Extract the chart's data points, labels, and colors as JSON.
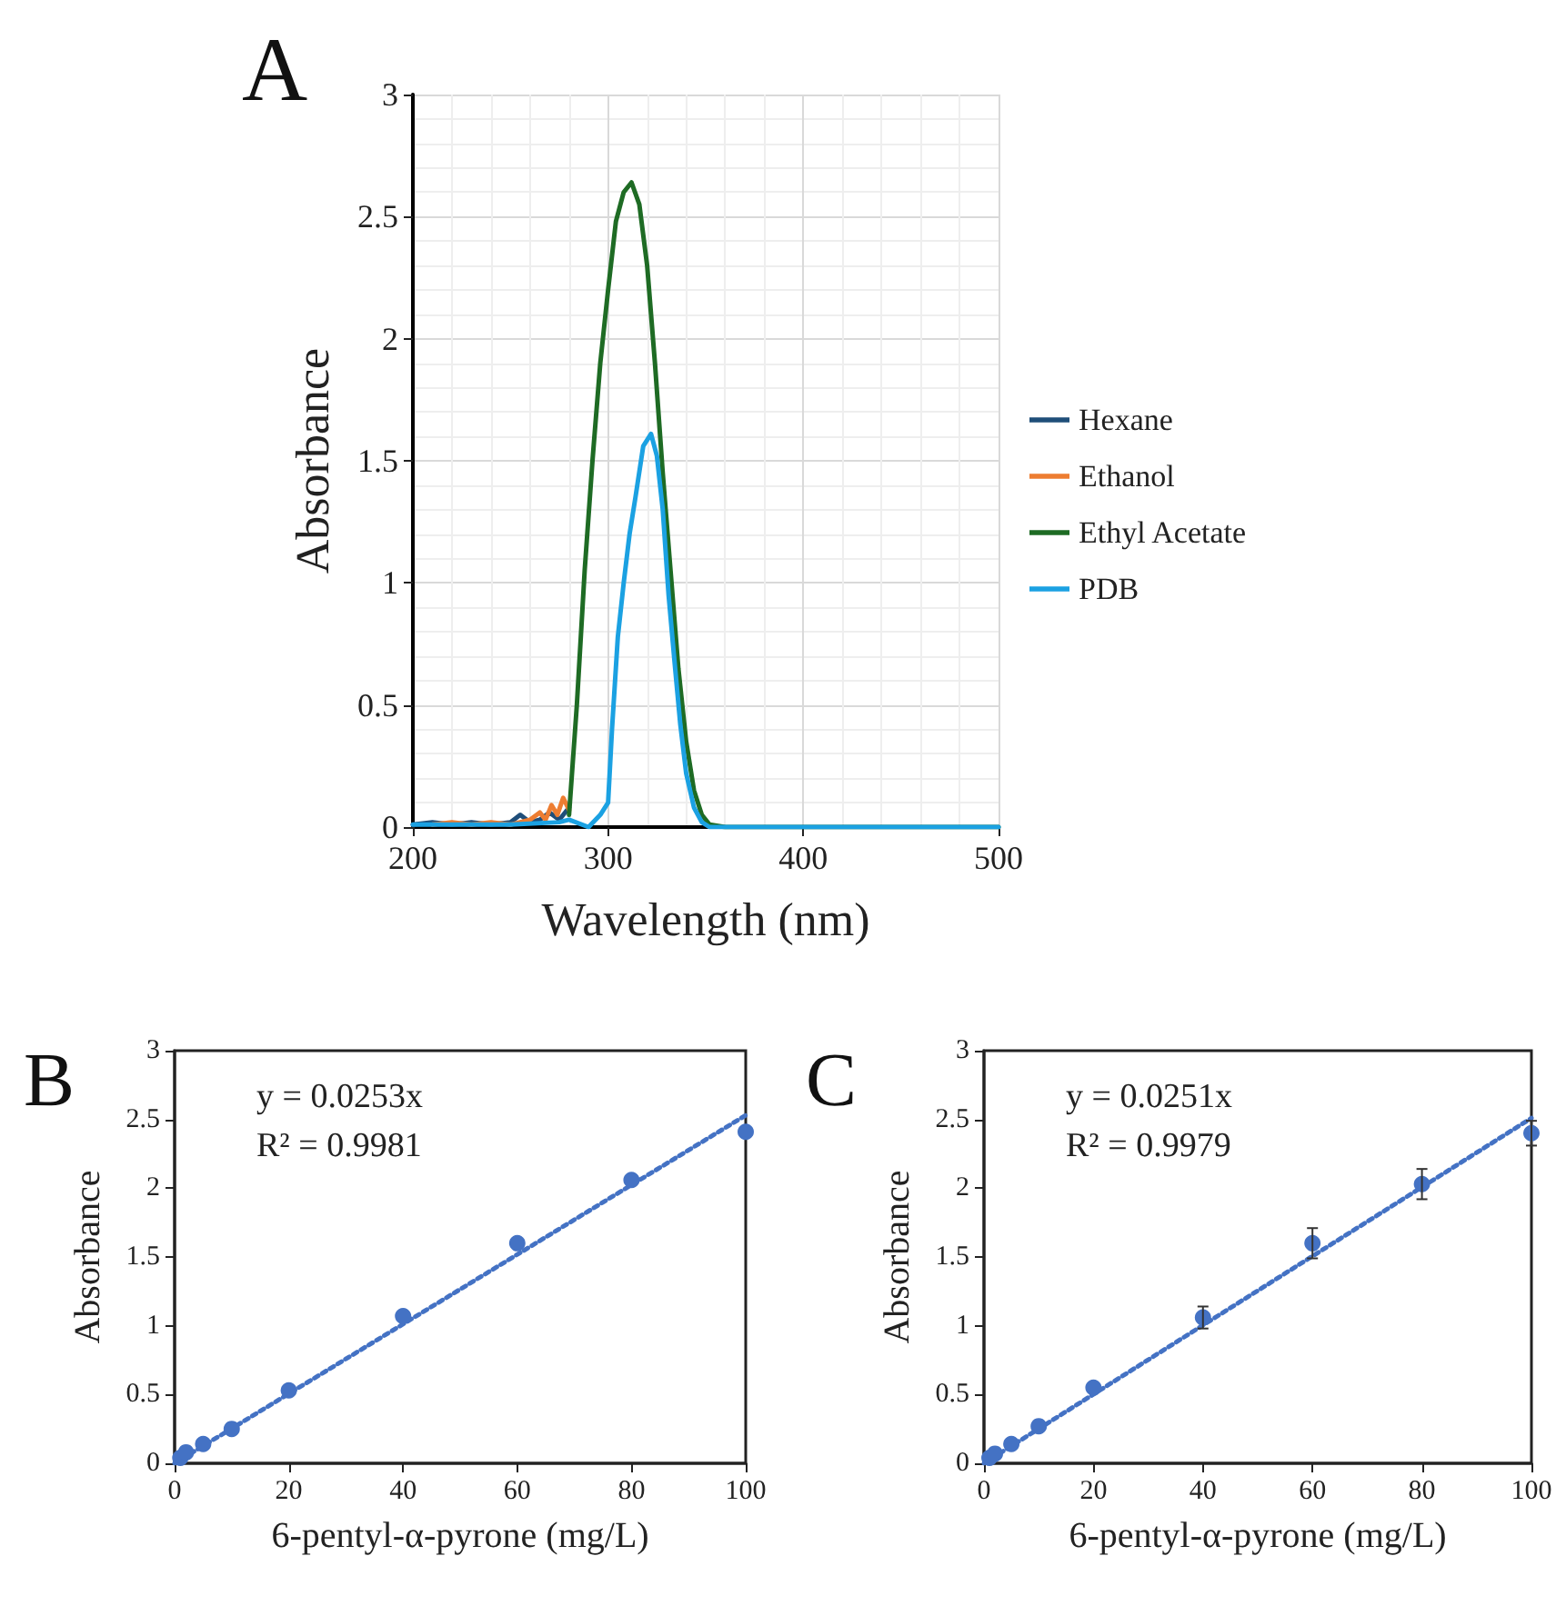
{
  "chart_data": [
    {
      "type": "line",
      "title": "A",
      "xlabel": "Wavelength (nm)",
      "ylabel": "Absorbance",
      "xlim": [
        200,
        500
      ],
      "xticks": [
        200,
        300,
        400,
        500
      ],
      "ylim": [
        0,
        3
      ],
      "yticks": [
        0,
        0.5,
        1,
        1.5,
        2,
        2.5,
        3
      ],
      "grid": true,
      "legend": "right",
      "marker": "none",
      "line_style": "solid",
      "series": [
        {
          "name": "Hexane",
          "color": "#1f4e79",
          "x": [
            200,
            210,
            220,
            230,
            240,
            250,
            255,
            260,
            265,
            270,
            275,
            280
          ],
          "values": [
            0.01,
            0.02,
            0.01,
            0.02,
            0.01,
            0.02,
            0.05,
            0.02,
            0.03,
            0.06,
            0.03,
            0.08
          ]
        },
        {
          "name": "Ethanol",
          "color": "#ed7d31",
          "x": [
            210,
            220,
            230,
            240,
            250,
            260,
            265,
            268,
            271,
            274,
            277,
            280
          ],
          "values": [
            0.01,
            0.02,
            0.01,
            0.02,
            0.01,
            0.03,
            0.06,
            0.03,
            0.09,
            0.05,
            0.12,
            0.07
          ]
        },
        {
          "name": "Ethyl Acetate",
          "color": "#1e6b24",
          "x": [
            280,
            284,
            288,
            292,
            296,
            300,
            304,
            308,
            312,
            316,
            320,
            324,
            328,
            332,
            336,
            340,
            344,
            348,
            352,
            360,
            400,
            500
          ],
          "values": [
            0.05,
            0.5,
            1.05,
            1.5,
            1.9,
            2.2,
            2.48,
            2.6,
            2.64,
            2.55,
            2.3,
            1.9,
            1.45,
            1.05,
            0.65,
            0.35,
            0.15,
            0.05,
            0.01,
            0,
            0,
            0
          ]
        },
        {
          "name": "PDB",
          "color": "#1ba1e2",
          "x": [
            200,
            250,
            275,
            280,
            290,
            296,
            300,
            302,
            305,
            308,
            311,
            314,
            318,
            322,
            325,
            328,
            331,
            334,
            337,
            340,
            344,
            348,
            352,
            400,
            500
          ],
          "values": [
            0.01,
            0.01,
            0.02,
            0.03,
            0,
            0.05,
            0.1,
            0.4,
            0.78,
            1.0,
            1.2,
            1.35,
            1.56,
            1.61,
            1.52,
            1.3,
            0.95,
            0.68,
            0.42,
            0.22,
            0.08,
            0.02,
            0,
            0,
            0
          ]
        }
      ]
    },
    {
      "type": "scatter",
      "title": "B",
      "xlabel": "6-pentyl-α-pyrone (mg/L)",
      "ylabel": "Absorbance",
      "xlim": [
        0,
        100
      ],
      "xticks": [
        0,
        20,
        40,
        60,
        80,
        100
      ],
      "ylim": [
        0,
        3
      ],
      "yticks": [
        0,
        0.5,
        1,
        1.5,
        2,
        2.5,
        3
      ],
      "grid": false,
      "legend": false,
      "marker": "circle",
      "annotations": [
        "y = 0.0253x",
        "R² = 0.9981"
      ],
      "series": [
        {
          "color": "#4472c4",
          "x": [
            1,
            2,
            5,
            10,
            20,
            40,
            60,
            80,
            100
          ],
          "values": [
            0.04,
            0.08,
            0.14,
            0.25,
            0.53,
            1.07,
            1.6,
            2.06,
            2.41
          ]
        },
        {
          "type": "line",
          "color": "#4472c4",
          "line_style": "dotted",
          "marker": "none",
          "x": [
            0,
            100
          ],
          "values": [
            0,
            2.53
          ]
        }
      ]
    },
    {
      "type": "scatter",
      "title": "C",
      "xlabel": "6-pentyl-α-pyrone (mg/L)",
      "ylabel": "Absorbance",
      "xlim": [
        0,
        100
      ],
      "xticks": [
        0,
        20,
        40,
        60,
        80,
        100
      ],
      "ylim": [
        0,
        3
      ],
      "yticks": [
        0,
        0.5,
        1,
        1.5,
        2,
        2.5,
        3
      ],
      "grid": false,
      "legend": false,
      "marker": "circle",
      "annotations": [
        "y = 0.0251x",
        "R² = 0.9979"
      ],
      "series": [
        {
          "color": "#4472c4",
          "x": [
            1,
            2,
            5,
            10,
            20,
            40,
            60,
            80,
            100
          ],
          "values": [
            0.04,
            0.07,
            0.14,
            0.27,
            0.55,
            1.06,
            1.6,
            2.03,
            2.4
          ],
          "errors": [
            null,
            null,
            null,
            null,
            null,
            0.08,
            0.11,
            0.11,
            0.09
          ]
        },
        {
          "type": "line",
          "color": "#4472c4",
          "line_style": "dotted",
          "marker": "none",
          "x": [
            0,
            100
          ],
          "values": [
            0,
            2.51
          ]
        }
      ]
    }
  ]
}
